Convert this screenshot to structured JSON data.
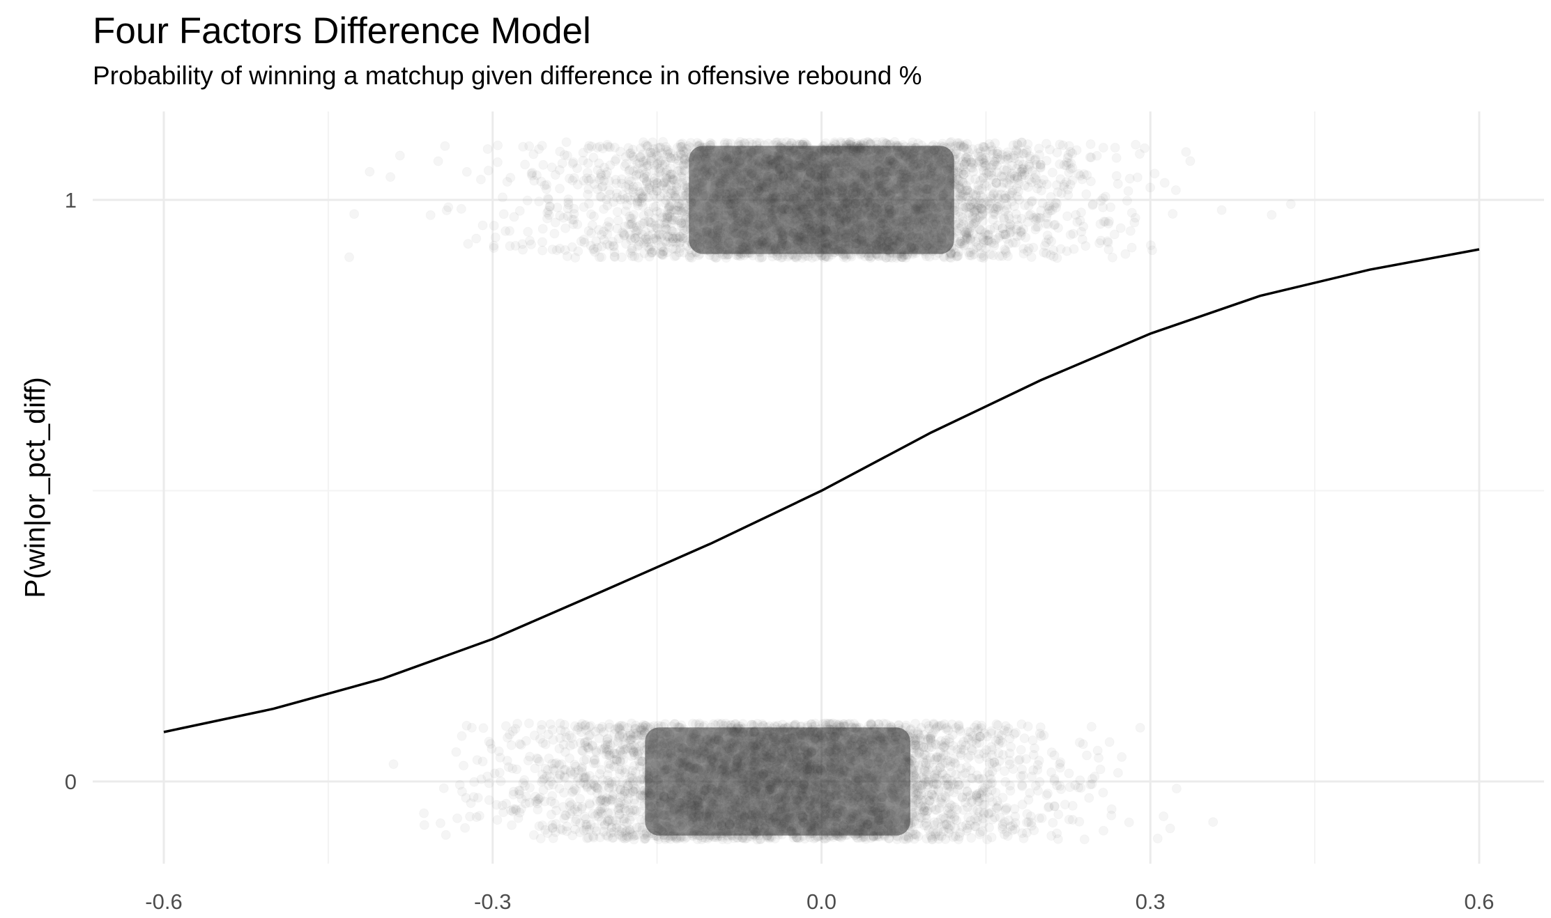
{
  "chart_data": {
    "type": "scatter",
    "title": "Four Factors Difference Model",
    "subtitle": "Probability of winning a matchup given difference in offensive rebound %",
    "xlabel": "",
    "ylabel": "P(win|or_pct_diff)",
    "xlim": [
      -0.6,
      0.6
    ],
    "ylim": [
      0,
      1
    ],
    "x_ticks": [
      -0.6,
      -0.3,
      0.0,
      0.3,
      0.6
    ],
    "x_tick_labels": [
      "-0.6",
      "-0.3",
      "0.0",
      "0.3",
      "0.6"
    ],
    "y_ticks": [
      0,
      1
    ],
    "y_tick_labels": [
      "0",
      "1"
    ],
    "grid": true,
    "legend": "none",
    "series": [
      {
        "type": "jittered-points",
        "y": 1,
        "jitter_height": 0.1,
        "point_opacity": 0.05,
        "x_mean": 0.0,
        "x_sd": 0.11,
        "x_range": [
          -0.45,
          0.6
        ]
      },
      {
        "type": "jittered-points",
        "y": 0,
        "jitter_height": 0.1,
        "point_opacity": 0.05,
        "x_mean": -0.04,
        "x_sd": 0.11,
        "x_range": [
          -0.6,
          0.5
        ]
      },
      {
        "type": "line",
        "fit": "logistic",
        "x": [
          -0.6,
          -0.5,
          -0.4,
          -0.3,
          -0.2,
          -0.1,
          0.0,
          0.1,
          0.2,
          0.3,
          0.4,
          0.5,
          0.6
        ],
        "y": [
          0.085,
          0.125,
          0.177,
          0.245,
          0.327,
          0.41,
          0.5,
          0.6,
          0.69,
          0.77,
          0.835,
          0.88,
          0.915
        ]
      }
    ],
    "colors": {
      "points": "#333333",
      "curve": "#000000",
      "grid": "#ebebeb",
      "tick_text": "#4d4d4d"
    }
  }
}
